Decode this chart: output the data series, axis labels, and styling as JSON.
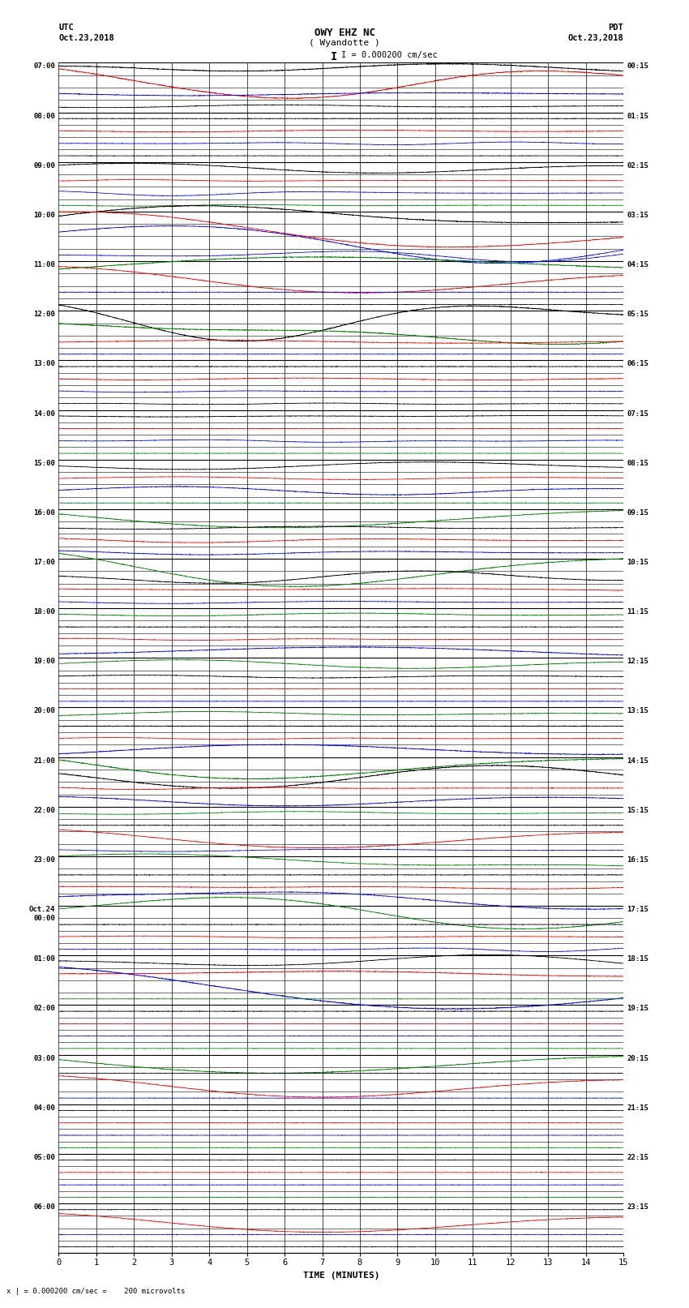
{
  "title_line1": "OWY EHZ NC",
  "title_line2": "( Wyandotte )",
  "scale_label": "I = 0.000200 cm/sec",
  "xlabel": "TIME (MINUTES)",
  "footer": "x | = 0.000200 cm/sec =    200 microvolts",
  "utc_labels": [
    [
      "07:00",
      0
    ],
    [
      "08:00",
      4
    ],
    [
      "09:00",
      8
    ],
    [
      "10:00",
      12
    ],
    [
      "11:00",
      16
    ],
    [
      "12:00",
      20
    ],
    [
      "13:00",
      24
    ],
    [
      "14:00",
      28
    ],
    [
      "15:00",
      32
    ],
    [
      "16:00",
      36
    ],
    [
      "17:00",
      40
    ],
    [
      "18:00",
      44
    ],
    [
      "19:00",
      48
    ],
    [
      "20:00",
      52
    ],
    [
      "21:00",
      56
    ],
    [
      "22:00",
      60
    ],
    [
      "23:00",
      64
    ],
    [
      "Oct.24\n00:00",
      68
    ],
    [
      "01:00",
      72
    ],
    [
      "02:00",
      76
    ],
    [
      "03:00",
      80
    ],
    [
      "04:00",
      84
    ],
    [
      "05:00",
      88
    ],
    [
      "06:00",
      92
    ]
  ],
  "pdt_labels": [
    [
      "00:15",
      0
    ],
    [
      "01:15",
      4
    ],
    [
      "02:15",
      8
    ],
    [
      "03:15",
      12
    ],
    [
      "04:15",
      16
    ],
    [
      "05:15",
      20
    ],
    [
      "06:15",
      24
    ],
    [
      "07:15",
      28
    ],
    [
      "08:15",
      32
    ],
    [
      "09:15",
      36
    ],
    [
      "10:15",
      40
    ],
    [
      "11:15",
      44
    ],
    [
      "12:15",
      48
    ],
    [
      "13:15",
      52
    ],
    [
      "14:15",
      56
    ],
    [
      "15:15",
      60
    ],
    [
      "16:15",
      64
    ],
    [
      "17:15",
      68
    ],
    [
      "18:15",
      72
    ],
    [
      "19:15",
      76
    ],
    [
      "20:15",
      80
    ],
    [
      "21:15",
      84
    ],
    [
      "22:15",
      88
    ],
    [
      "23:15",
      92
    ]
  ],
  "num_rows": 96,
  "x_ticks": [
    0,
    1,
    2,
    3,
    4,
    5,
    6,
    7,
    8,
    9,
    10,
    11,
    12,
    13,
    14,
    15
  ],
  "background_color": "#ffffff",
  "fig_width": 8.5,
  "fig_height": 16.13,
  "dpi": 100
}
